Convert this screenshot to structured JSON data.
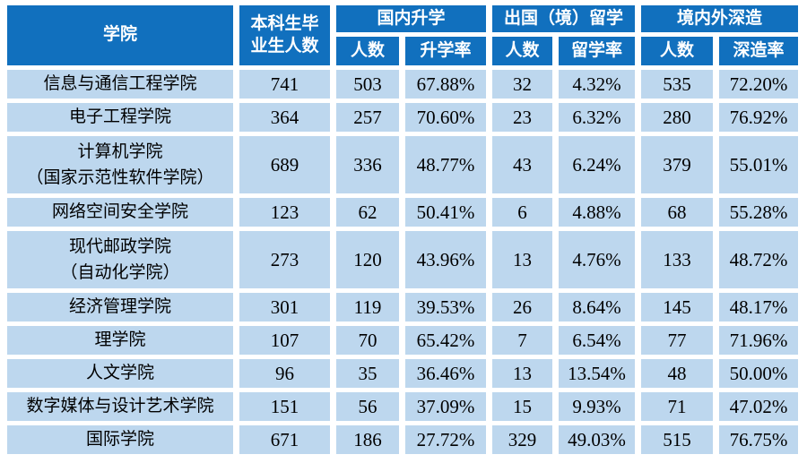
{
  "chart_data": {
    "type": "table",
    "title": "",
    "columns": [
      "学院",
      "本科生毕业生人数",
      "国内升学 人数",
      "国内升学 升学率",
      "出国（境）留学 人数",
      "出国（境）留学 留学率",
      "境内外深造 人数",
      "境内外深造 深造率"
    ],
    "rows": [
      [
        "信息与通信工程学院",
        741,
        503,
        "67.88%",
        32,
        "4.32%",
        535,
        "72.20%"
      ],
      [
        "电子工程学院",
        364,
        257,
        "70.60%",
        23,
        "6.32%",
        280,
        "76.92%"
      ],
      [
        "计算机学院（国家示范性软件学院）",
        689,
        336,
        "48.77%",
        43,
        "6.24%",
        379,
        "55.01%"
      ],
      [
        "网络空间安全学院",
        123,
        62,
        "50.41%",
        6,
        "4.88%",
        68,
        "55.28%"
      ],
      [
        "现代邮政学院（自动化学院）",
        273,
        120,
        "43.96%",
        13,
        "4.76%",
        133,
        "48.72%"
      ],
      [
        "经济管理学院",
        301,
        119,
        "39.53%",
        26,
        "8.64%",
        145,
        "48.17%"
      ],
      [
        "理学院",
        107,
        70,
        "65.42%",
        7,
        "6.54%",
        77,
        "71.96%"
      ],
      [
        "人文学院",
        96,
        35,
        "36.46%",
        13,
        "13.54%",
        48,
        "50.00%"
      ],
      [
        "数字媒体与设计艺术学院",
        151,
        56,
        "37.09%",
        15,
        "9.93%",
        71,
        "47.02%"
      ],
      [
        "国际学院",
        671,
        186,
        "27.72%",
        329,
        "49.03%",
        515,
        "76.75%"
      ]
    ]
  },
  "table": {
    "header": {
      "college": "学院",
      "graduates": "本科生毕\n业生人数",
      "groups": [
        {
          "label": "国内升学",
          "sub": [
            "人数",
            "升学率"
          ]
        },
        {
          "label": "出国（境）留学",
          "sub": [
            "人数",
            "留学率"
          ]
        },
        {
          "label": "境内外深造",
          "sub": [
            "人数",
            "深造率"
          ]
        }
      ]
    },
    "rows": [
      {
        "college": "信息与通信工程学院",
        "values": [
          "741",
          "503",
          "67.88%",
          "32",
          "4.32%",
          "535",
          "72.20%"
        ]
      },
      {
        "college": "电子工程学院",
        "values": [
          "364",
          "257",
          "70.60%",
          "23",
          "6.32%",
          "280",
          "76.92%"
        ]
      },
      {
        "college": "计算机学院\n（国家示范性软件学院）",
        "values": [
          "689",
          "336",
          "48.77%",
          "43",
          "6.24%",
          "379",
          "55.01%"
        ]
      },
      {
        "college": "网络空间安全学院",
        "values": [
          "123",
          "62",
          "50.41%",
          "6",
          "4.88%",
          "68",
          "55.28%"
        ]
      },
      {
        "college": "现代邮政学院\n（自动化学院）",
        "values": [
          "273",
          "120",
          "43.96%",
          "13",
          "4.76%",
          "133",
          "48.72%"
        ]
      },
      {
        "college": "经济管理学院",
        "values": [
          "301",
          "119",
          "39.53%",
          "26",
          "8.64%",
          "145",
          "48.17%"
        ]
      },
      {
        "college": "理学院",
        "values": [
          "107",
          "70",
          "65.42%",
          "7",
          "6.54%",
          "77",
          "71.96%"
        ]
      },
      {
        "college": "人文学院",
        "values": [
          "96",
          "35",
          "36.46%",
          "13",
          "13.54%",
          "48",
          "50.00%"
        ]
      },
      {
        "college": "数字媒体与设计艺术学院",
        "values": [
          "151",
          "56",
          "37.09%",
          "15",
          "9.93%",
          "71",
          "47.02%"
        ]
      },
      {
        "college": "国际学院",
        "values": [
          "671",
          "186",
          "27.72%",
          "329",
          "49.03%",
          "515",
          "76.75%"
        ]
      }
    ]
  },
  "colors": {
    "header_bg": "#1170BE",
    "header_text": "#FFFFFF",
    "row_bg": "#BDD7EE",
    "body_text": "#000000",
    "page_bg": "#FFFFFF"
  }
}
